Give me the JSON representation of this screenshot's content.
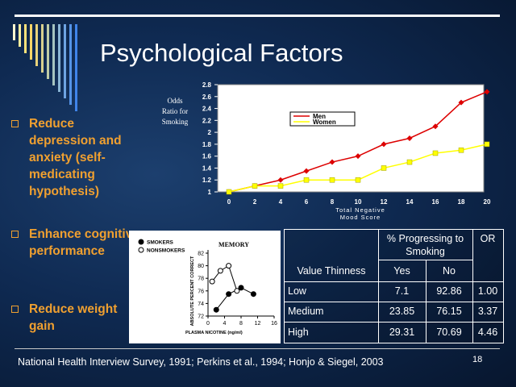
{
  "slide": {
    "title": "Psychological Factors",
    "bullets": [
      "Reduce depression and anxiety (self-medicating hypothesis)",
      "Enhance cognitive performance",
      "Reduce weight gain"
    ],
    "footer": "National Health Interview Survey, 1991; Perkins et al., 1994; Honjo & Siegel, 2003",
    "page_number": "18",
    "colors": {
      "bullet_text": "#f0a030",
      "title": "#ffffff",
      "men": "#dd0000",
      "women": "#ffff00"
    }
  },
  "chart_data": [
    {
      "type": "line",
      "ylabel": "Odds Ratio for Smoking",
      "xlabel": "Total Negative Mood Score",
      "x": [
        0,
        2,
        4,
        6,
        8,
        10,
        12,
        14,
        16,
        18,
        20
      ],
      "yticks": [
        "1",
        "1.2",
        "1.4",
        "1.6",
        "1.8",
        "2",
        "2.2",
        "2.4",
        "2.6",
        "2.8"
      ],
      "ylim": [
        1,
        2.8
      ],
      "xlim": [
        0,
        20
      ],
      "grid": false,
      "legend_position": "top-left",
      "series": [
        {
          "name": "Men",
          "color": "#dd0000",
          "values": [
            1.0,
            1.1,
            1.2,
            1.35,
            1.5,
            1.6,
            1.8,
            1.9,
            2.1,
            2.5,
            2.68
          ]
        },
        {
          "name": "Women",
          "color": "#ffff00",
          "values": [
            1.0,
            1.1,
            1.1,
            1.2,
            1.2,
            1.2,
            1.4,
            1.5,
            1.65,
            1.7,
            1.8
          ]
        }
      ]
    },
    {
      "type": "line",
      "title": "MEMORY",
      "ylabel": "ABSOLUTE PERCENT CORRECT",
      "xlabel": "PLASMA NICOTINE (ng/ml)",
      "yticks": [
        "72",
        "74",
        "76",
        "78",
        "80",
        "82"
      ],
      "xticks": [
        "0",
        "4",
        "8",
        "12",
        "16"
      ],
      "ylim": [
        72,
        82
      ],
      "xlim": [
        0,
        16
      ],
      "legend_position": "top-left",
      "series": [
        {
          "name": "SMOKERS",
          "marker": "filled",
          "x": [
            2,
            5,
            8,
            11
          ],
          "values": [
            73.0,
            75.5,
            76.5,
            75.5
          ]
        },
        {
          "name": "NONSMOKERS",
          "marker": "open",
          "x": [
            1,
            3,
            5,
            7
          ],
          "values": [
            77.5,
            79.2,
            80.0,
            76.0
          ]
        }
      ]
    },
    {
      "type": "table",
      "header_group": "% Progressing to Smoking",
      "header_or": "OR",
      "row_header": "Value Thinness",
      "subheaders": [
        "Yes",
        "No"
      ],
      "rows": [
        {
          "label": "Low",
          "yes": "7.1",
          "no": "92.86",
          "or": "1.00"
        },
        {
          "label": "Medium",
          "yes": "23.85",
          "no": "76.15",
          "or": "3.37"
        },
        {
          "label": "High",
          "yes": "29.31",
          "no": "70.69",
          "or": "4.46"
        }
      ]
    }
  ]
}
